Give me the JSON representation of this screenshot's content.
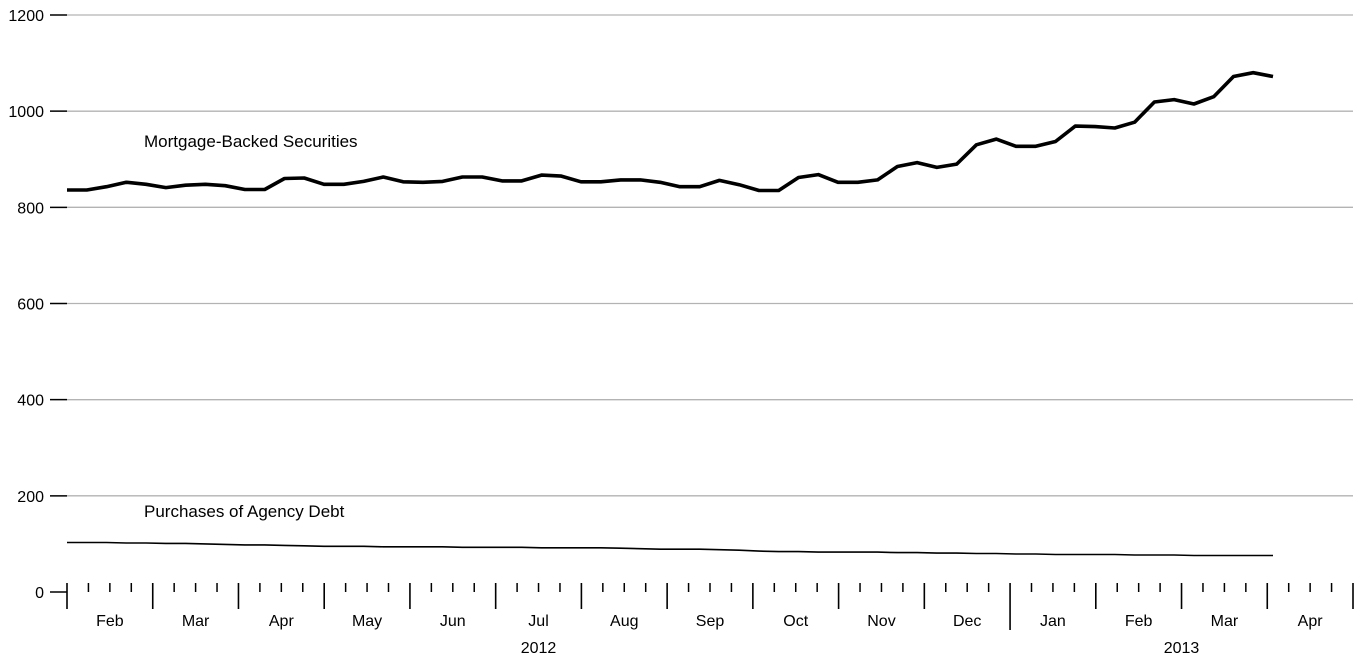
{
  "chart_data": {
    "type": "line",
    "x_unit": "weekly observations, Jan 2012 - Apr 2013",
    "ylim": [
      0,
      1200
    ],
    "y_ticks": [
      0,
      200,
      400,
      600,
      800,
      1000,
      1200
    ],
    "grid": "horizontal",
    "months": [
      {
        "label": "Feb"
      },
      {
        "label": "Mar"
      },
      {
        "label": "Apr"
      },
      {
        "label": "May"
      },
      {
        "label": "Jun"
      },
      {
        "label": "Jul"
      },
      {
        "label": "Aug"
      },
      {
        "label": "Sep"
      },
      {
        "label": "Oct"
      },
      {
        "label": "Nov"
      },
      {
        "label": "Dec"
      },
      {
        "label": "Jan"
      },
      {
        "label": "Feb"
      },
      {
        "label": "Mar"
      },
      {
        "label": "Apr"
      }
    ],
    "years": [
      {
        "label": "2012"
      },
      {
        "label": "2013"
      }
    ],
    "series": [
      {
        "name": "Mortgage-Backed Securities",
        "style": "thick",
        "values": [
          836,
          836,
          843,
          852,
          848,
          841,
          846,
          848,
          845,
          837,
          837,
          860,
          861,
          848,
          848,
          854,
          863,
          853,
          852,
          854,
          863,
          863,
          855,
          855,
          867,
          865,
          853,
          853,
          857,
          857,
          852,
          843,
          843,
          856,
          847,
          835,
          835,
          862,
          868,
          852,
          852,
          857,
          885,
          893,
          883,
          890,
          930,
          942,
          927,
          927,
          937,
          969,
          968,
          965,
          977,
          1019,
          1024,
          1015,
          1030,
          1072,
          1080,
          1072
        ]
      },
      {
        "name": "Purchases of Agency Debt",
        "style": "thin",
        "values": [
          103,
          103,
          103,
          102,
          102,
          101,
          101,
          100,
          99,
          98,
          98,
          97,
          96,
          95,
          95,
          95,
          94,
          94,
          94,
          94,
          93,
          93,
          93,
          93,
          92,
          92,
          92,
          92,
          91,
          90,
          89,
          89,
          89,
          88,
          87,
          85,
          84,
          84,
          83,
          83,
          83,
          83,
          82,
          82,
          81,
          81,
          80,
          80,
          79,
          79,
          78,
          78,
          78,
          78,
          77,
          77,
          77,
          76,
          76,
          76,
          76,
          76
        ]
      }
    ]
  }
}
